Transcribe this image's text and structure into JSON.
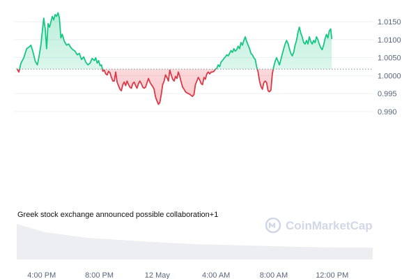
{
  "chart_data": {
    "type": "line",
    "baseline": 1.0018,
    "ylim": [
      0.9875,
      1.0195
    ],
    "y_ticks": [
      {
        "value": 1.015,
        "label": "1.0150"
      },
      {
        "value": 1.01,
        "label": "1.0100"
      },
      {
        "value": 1.005,
        "label": "1.0050"
      },
      {
        "value": 1.0,
        "label": "1.0000"
      },
      {
        "value": 0.995,
        "label": "0.995"
      },
      {
        "value": 0.99,
        "label": "0.990"
      }
    ],
    "x_ticks": [
      {
        "t": 0.07,
        "label": "4:00 PM"
      },
      {
        "t": 0.232,
        "label": "8:00 PM"
      },
      {
        "t": 0.395,
        "label": "12 May"
      },
      {
        "t": 0.56,
        "label": "4:00 AM"
      },
      {
        "t": 0.722,
        "label": "8:00 AM"
      },
      {
        "t": 0.886,
        "label": "12:00 PM"
      }
    ],
    "series": [
      {
        "points": [
          [
            0.0,
            1.002
          ],
          [
            0.006,
            1.001
          ],
          [
            0.012,
            1.0035
          ],
          [
            0.02,
            1.005
          ],
          [
            0.028,
            1.0075
          ],
          [
            0.035,
            1.008
          ],
          [
            0.04,
            1.0085
          ],
          [
            0.046,
            1.0065
          ],
          [
            0.052,
            1.004
          ],
          [
            0.058,
            1.003
          ],
          [
            0.062,
            1.005
          ],
          [
            0.068,
            1.0085
          ],
          [
            0.072,
            1.0125
          ],
          [
            0.076,
            1.016
          ],
          [
            0.08,
            1.013
          ],
          [
            0.084,
            1.0075
          ],
          [
            0.088,
            1.0145
          ],
          [
            0.092,
            1.0135
          ],
          [
            0.096,
            1.015
          ],
          [
            0.1,
            1.0165
          ],
          [
            0.104,
            1.0155
          ],
          [
            0.108,
            1.017
          ],
          [
            0.112,
            1.0165
          ],
          [
            0.116,
            1.0175
          ],
          [
            0.12,
            1.016
          ],
          [
            0.124,
            1.0105
          ],
          [
            0.128,
            1.0115
          ],
          [
            0.134,
            1.0095
          ],
          [
            0.14,
            1.0085
          ],
          [
            0.146,
            1.0088
          ],
          [
            0.152,
            1.0078
          ],
          [
            0.158,
            1.0072
          ],
          [
            0.164,
            1.0068
          ],
          [
            0.17,
            1.0058
          ],
          [
            0.176,
            1.0062
          ],
          [
            0.182,
            1.0045
          ],
          [
            0.188,
            1.0052
          ],
          [
            0.194,
            1.0038
          ],
          [
            0.2,
            1.003
          ],
          [
            0.206,
            1.0035
          ],
          [
            0.212,
            1.0048
          ],
          [
            0.218,
            1.0042
          ],
          [
            0.222,
            1.005
          ],
          [
            0.226,
            1.0035
          ],
          [
            0.23,
            1.0042
          ],
          [
            0.234,
            1.0028
          ],
          [
            0.238,
            1.003
          ],
          [
            0.242,
            1.0012
          ],
          [
            0.246,
            1.0015
          ],
          [
            0.25,
            1.0005
          ],
          [
            0.254,
            1.0002
          ],
          [
            0.258,
            1.0012
          ],
          [
            0.262,
            1.0008
          ],
          [
            0.266,
            0.9995
          ],
          [
            0.27,
            0.9985
          ],
          [
            0.274,
            0.9985
          ],
          [
            0.278,
            1.001
          ],
          [
            0.282,
            0.9982
          ],
          [
            0.286,
            0.9972
          ],
          [
            0.29,
            0.9962
          ],
          [
            0.294,
            0.9958
          ],
          [
            0.298,
            0.9975
          ],
          [
            0.302,
            0.9982
          ],
          [
            0.306,
            0.9972
          ],
          [
            0.31,
            0.9985
          ],
          [
            0.314,
            0.9975
          ],
          [
            0.318,
            0.9968
          ],
          [
            0.322,
            0.9965
          ],
          [
            0.326,
            0.9978
          ],
          [
            0.33,
            0.9982
          ],
          [
            0.334,
            0.9972
          ],
          [
            0.338,
            0.9965
          ],
          [
            0.342,
            0.9978
          ],
          [
            0.346,
            0.9985
          ],
          [
            0.35,
            0.9978
          ],
          [
            0.354,
            0.9968
          ],
          [
            0.358,
            0.9965
          ],
          [
            0.362,
            0.9968
          ],
          [
            0.366,
            0.998
          ],
          [
            0.37,
            0.9992
          ],
          [
            0.374,
            0.9982
          ],
          [
            0.378,
            0.9975
          ],
          [
            0.382,
            0.997
          ],
          [
            0.386,
            0.9962
          ],
          [
            0.39,
            0.994
          ],
          [
            0.394,
            0.993
          ],
          [
            0.398,
            0.992
          ],
          [
            0.402,
            0.9925
          ],
          [
            0.406,
            0.9948
          ],
          [
            0.41,
            0.9975
          ],
          [
            0.414,
            0.9985
          ],
          [
            0.418,
            1.0002
          ],
          [
            0.422,
            0.9995
          ],
          [
            0.426,
            0.9985
          ],
          [
            0.43,
            1.0015
          ],
          [
            0.434,
            1.0002
          ],
          [
            0.438,
            0.999
          ],
          [
            0.442,
            0.9985
          ],
          [
            0.446,
            0.9998
          ],
          [
            0.45,
            0.9992
          ],
          [
            0.454,
            1.001
          ],
          [
            0.458,
            0.9998
          ],
          [
            0.462,
            0.9982
          ],
          [
            0.466,
            0.9968
          ],
          [
            0.47,
            0.9962
          ],
          [
            0.474,
            0.9955
          ],
          [
            0.478,
            0.9952
          ],
          [
            0.482,
            0.995
          ],
          [
            0.486,
            0.9948
          ],
          [
            0.49,
            0.9945
          ],
          [
            0.494,
            0.9942
          ],
          [
            0.498,
            0.9948
          ],
          [
            0.502,
            0.9975
          ],
          [
            0.506,
            0.9985
          ],
          [
            0.51,
            0.9995
          ],
          [
            0.514,
            0.9988
          ],
          [
            0.518,
            0.9978
          ],
          [
            0.522,
            0.9975
          ],
          [
            0.526,
            0.9995
          ],
          [
            0.53,
            0.999
          ],
          [
            0.534,
            1.0005
          ],
          [
            0.538,
            1.001
          ],
          [
            0.542,
            1.0005
          ],
          [
            0.546,
            1.001
          ],
          [
            0.55,
            1.001
          ],
          [
            0.554,
            1.0012
          ],
          [
            0.558,
            1.0018
          ],
          [
            0.562,
            1.002
          ],
          [
            0.566,
            1.003
          ],
          [
            0.57,
            1.0025
          ],
          [
            0.574,
            1.0038
          ],
          [
            0.578,
            1.0042
          ],
          [
            0.582,
            1.0048
          ],
          [
            0.586,
            1.0052
          ],
          [
            0.59,
            1.0058
          ],
          [
            0.594,
            1.0055
          ],
          [
            0.598,
            1.0062
          ],
          [
            0.602,
            1.007
          ],
          [
            0.606,
            1.0065
          ],
          [
            0.61,
            1.0075
          ],
          [
            0.614,
            1.0068
          ],
          [
            0.618,
            1.0072
          ],
          [
            0.622,
            1.0082
          ],
          [
            0.626,
            1.0075
          ],
          [
            0.63,
            1.0092
          ],
          [
            0.634,
            1.0085
          ],
          [
            0.638,
            1.0098
          ],
          [
            0.642,
            1.0108
          ],
          [
            0.646,
            1.0095
          ],
          [
            0.65,
            1.0085
          ],
          [
            0.654,
            1.0075
          ],
          [
            0.658,
            1.0062
          ],
          [
            0.662,
            1.0058
          ],
          [
            0.666,
            1.005
          ],
          [
            0.67,
            1.0045
          ],
          [
            0.674,
            1.0025
          ],
          [
            0.678,
            1.001
          ],
          [
            0.682,
            0.9985
          ],
          [
            0.686,
            0.997
          ],
          [
            0.69,
            0.9962
          ],
          [
            0.694,
            0.998
          ],
          [
            0.698,
            0.9985
          ],
          [
            0.702,
            0.998
          ],
          [
            0.706,
            0.9958
          ],
          [
            0.71,
            0.9955
          ],
          [
            0.714,
            0.996
          ],
          [
            0.718,
            1.0005
          ],
          [
            0.722,
            1.0025
          ],
          [
            0.726,
            1.004
          ],
          [
            0.73,
            1.005
          ],
          [
            0.734,
            1.004
          ],
          [
            0.738,
            1.003
          ],
          [
            0.742,
            1.0045
          ],
          [
            0.746,
            1.006
          ],
          [
            0.75,
            1.0075
          ],
          [
            0.754,
            1.0088
          ],
          [
            0.758,
            1.0098
          ],
          [
            0.762,
            1.009
          ],
          [
            0.766,
            1.0075
          ],
          [
            0.77,
            1.0062
          ],
          [
            0.774,
            1.0055
          ],
          [
            0.778,
            1.0065
          ],
          [
            0.782,
            1.0085
          ],
          [
            0.786,
            1.0098
          ],
          [
            0.79,
            1.012
          ],
          [
            0.794,
            1.0135
          ],
          [
            0.798,
            1.0118
          ],
          [
            0.802,
            1.0108
          ],
          [
            0.806,
            1.0092
          ],
          [
            0.81,
            1.0088
          ],
          [
            0.814,
            1.0098
          ],
          [
            0.818,
            1.0088
          ],
          [
            0.822,
            1.0108
          ],
          [
            0.826,
            1.0095
          ],
          [
            0.83,
            1.0088
          ],
          [
            0.834,
            1.0098
          ],
          [
            0.838,
            1.0092
          ],
          [
            0.842,
            1.0108
          ],
          [
            0.846,
            1.01
          ],
          [
            0.85,
            1.0088
          ],
          [
            0.854,
            1.0078
          ],
          [
            0.858,
            1.0072
          ],
          [
            0.862,
            1.0085
          ],
          [
            0.866,
            1.0102
          ],
          [
            0.87,
            1.0115
          ],
          [
            0.874,
            1.0105
          ],
          [
            0.878,
            1.0125
          ],
          [
            0.882,
            1.013
          ],
          [
            0.885,
            1.0102
          ]
        ]
      }
    ],
    "annotation": "Greek stock exchange announced possible collaboration+1",
    "watermark": "CoinMarketCap",
    "colors": {
      "up_line": "#16c784",
      "down_line": "#d93a46",
      "up_fill": "#16c784",
      "down_fill": "#ea3943",
      "baseline": "#808a9d",
      "grid": "#eceff4",
      "volume": "#e7eaef",
      "tick_text": "#58667e"
    },
    "grid": true,
    "volume_area": true
  }
}
